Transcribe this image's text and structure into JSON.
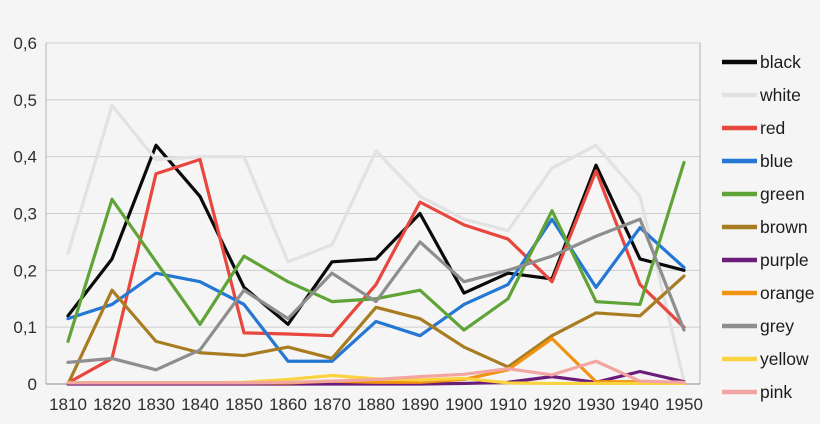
{
  "chart_data": {
    "type": "line",
    "title": "",
    "xlabel": "",
    "ylabel": "",
    "x": [
      1810,
      1820,
      1830,
      1840,
      1850,
      1860,
      1870,
      1880,
      1890,
      1900,
      1910,
      1920,
      1930,
      1940,
      1950
    ],
    "x_tick_labels": [
      "1810",
      "1820",
      "1830",
      "1840",
      "1850",
      "1860",
      "1870",
      "1880",
      "1890",
      "1900",
      "1910",
      "1920",
      "1930",
      "1940",
      "1950"
    ],
    "y_tick_labels": [
      "0",
      "0,1",
      "0,2",
      "0,3",
      "0,4",
      "0,5",
      "0,6"
    ],
    "ylim": [
      0,
      0.6
    ],
    "grid": true,
    "legend_position": "right",
    "series": [
      {
        "name": "black",
        "color": "#0a0a0a",
        "values": [
          0.12,
          0.22,
          0.42,
          0.33,
          0.17,
          0.105,
          0.215,
          0.22,
          0.3,
          0.16,
          0.195,
          0.185,
          0.385,
          0.22,
          0.2
        ]
      },
      {
        "name": "white",
        "color": "#e2e2e2",
        "values": [
          0.23,
          0.49,
          0.395,
          0.4,
          0.4,
          0.215,
          0.245,
          0.41,
          0.33,
          0.29,
          0.27,
          0.38,
          0.42,
          0.33,
          0.005
        ]
      },
      {
        "name": "red",
        "color": "#e8473d",
        "values": [
          0.002,
          0.045,
          0.37,
          0.395,
          0.09,
          0.088,
          0.085,
          0.175,
          0.32,
          0.28,
          0.255,
          0.18,
          0.375,
          0.175,
          0.1
        ]
      },
      {
        "name": "blue",
        "color": "#2478d4",
        "values": [
          0.115,
          0.14,
          0.195,
          0.18,
          0.14,
          0.04,
          0.04,
          0.11,
          0.085,
          0.14,
          0.175,
          0.29,
          0.17,
          0.275,
          0.205
        ]
      },
      {
        "name": "green",
        "color": "#60a437",
        "values": [
          0.075,
          0.325,
          0.215,
          0.105,
          0.225,
          0.18,
          0.145,
          0.15,
          0.165,
          0.095,
          0.15,
          0.305,
          0.145,
          0.14,
          0.39
        ]
      },
      {
        "name": "brown",
        "color": "#a87d22",
        "values": [
          0.0,
          0.165,
          0.075,
          0.055,
          0.05,
          0.065,
          0.045,
          0.135,
          0.115,
          0.065,
          0.03,
          0.085,
          0.125,
          0.12,
          0.19
        ]
      },
      {
        "name": "purple",
        "color": "#6b1e79",
        "values": [
          0.0,
          0.0,
          0.0,
          0.0,
          0.0,
          0.0,
          0.0,
          0.0,
          0.0,
          0.001,
          0.003,
          0.013,
          0.003,
          0.022,
          0.004
        ]
      },
      {
        "name": "orange",
        "color": "#f29211",
        "values": [
          0.002,
          0.002,
          0.002,
          0.002,
          0.002,
          0.002,
          0.005,
          0.003,
          0.003,
          0.008,
          0.025,
          0.08,
          0.004,
          0.004,
          0.002
        ]
      },
      {
        "name": "grey",
        "color": "#8e8e8e",
        "values": [
          0.038,
          0.045,
          0.025,
          0.06,
          0.165,
          0.115,
          0.195,
          0.145,
          0.25,
          0.18,
          0.2,
          0.225,
          0.26,
          0.29,
          0.095
        ]
      },
      {
        "name": "yellow",
        "color": "#fbd33f",
        "values": [
          0.002,
          0.002,
          0.002,
          0.002,
          0.003,
          0.008,
          0.015,
          0.009,
          0.007,
          0.01,
          0.002,
          0.001,
          0.001,
          0.001,
          0.001
        ]
      },
      {
        "name": "pink",
        "color": "#f3a5a2",
        "values": [
          0.002,
          0.002,
          0.002,
          0.002,
          0.002,
          0.003,
          0.005,
          0.008,
          0.013,
          0.017,
          0.027,
          0.016,
          0.04,
          0.005,
          0.003
        ]
      }
    ],
    "colors": {
      "grid_line": "#cfcfcf",
      "axis_frame": "#b3b3b3",
      "axis_bottom": "#9f9f9f",
      "background": "#f5f5f5"
    }
  }
}
